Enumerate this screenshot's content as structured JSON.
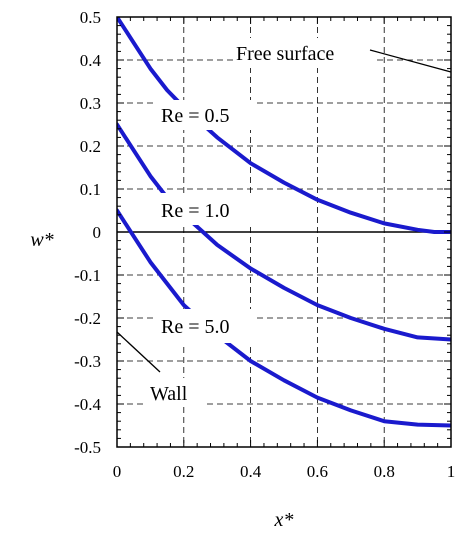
{
  "chart_data": {
    "type": "line",
    "xlabel": "x*",
    "ylabel": "w*",
    "xlim": [
      0,
      1
    ],
    "ylim": [
      -0.5,
      0.5
    ],
    "xticks": [
      "0",
      "0.2",
      "0.4",
      "0.6",
      "0.8",
      "1"
    ],
    "yticks": [
      "0.5",
      "0.4",
      "0.3",
      "0.2",
      "0.1",
      "0",
      "-0.1",
      "-0.2",
      "-0.3",
      "-0.4",
      "-0.5"
    ],
    "grid": true,
    "series_color": "#1a1acd",
    "series": [
      {
        "label": "Re = 0.5",
        "x": [
          0.0,
          0.05,
          0.1,
          0.15,
          0.2,
          0.3,
          0.4,
          0.5,
          0.6,
          0.7,
          0.8,
          0.9,
          0.95,
          1.0
        ],
        "y": [
          0.5,
          0.44,
          0.38,
          0.33,
          0.29,
          0.22,
          0.16,
          0.115,
          0.075,
          0.045,
          0.02,
          0.005,
          0.0,
          0.0
        ]
      },
      {
        "label": "Re = 1.0",
        "x": [
          0.0,
          0.05,
          0.1,
          0.15,
          0.2,
          0.25,
          0.3,
          0.4,
          0.5,
          0.6,
          0.7,
          0.8,
          0.9,
          1.0
        ],
        "y": [
          0.25,
          0.19,
          0.13,
          0.08,
          0.04,
          0.005,
          -0.03,
          -0.085,
          -0.13,
          -0.17,
          -0.2,
          -0.225,
          -0.245,
          -0.25
        ]
      },
      {
        "label": "Re = 5.0",
        "x": [
          0.0,
          0.05,
          0.1,
          0.15,
          0.2,
          0.3,
          0.4,
          0.5,
          0.6,
          0.7,
          0.8,
          0.9,
          1.0
        ],
        "y": [
          0.05,
          -0.01,
          -0.07,
          -0.12,
          -0.17,
          -0.24,
          -0.3,
          -0.345,
          -0.385,
          -0.415,
          -0.44,
          -0.448,
          -0.45
        ]
      }
    ],
    "annotations": [
      "Free surface",
      "Wall"
    ]
  }
}
